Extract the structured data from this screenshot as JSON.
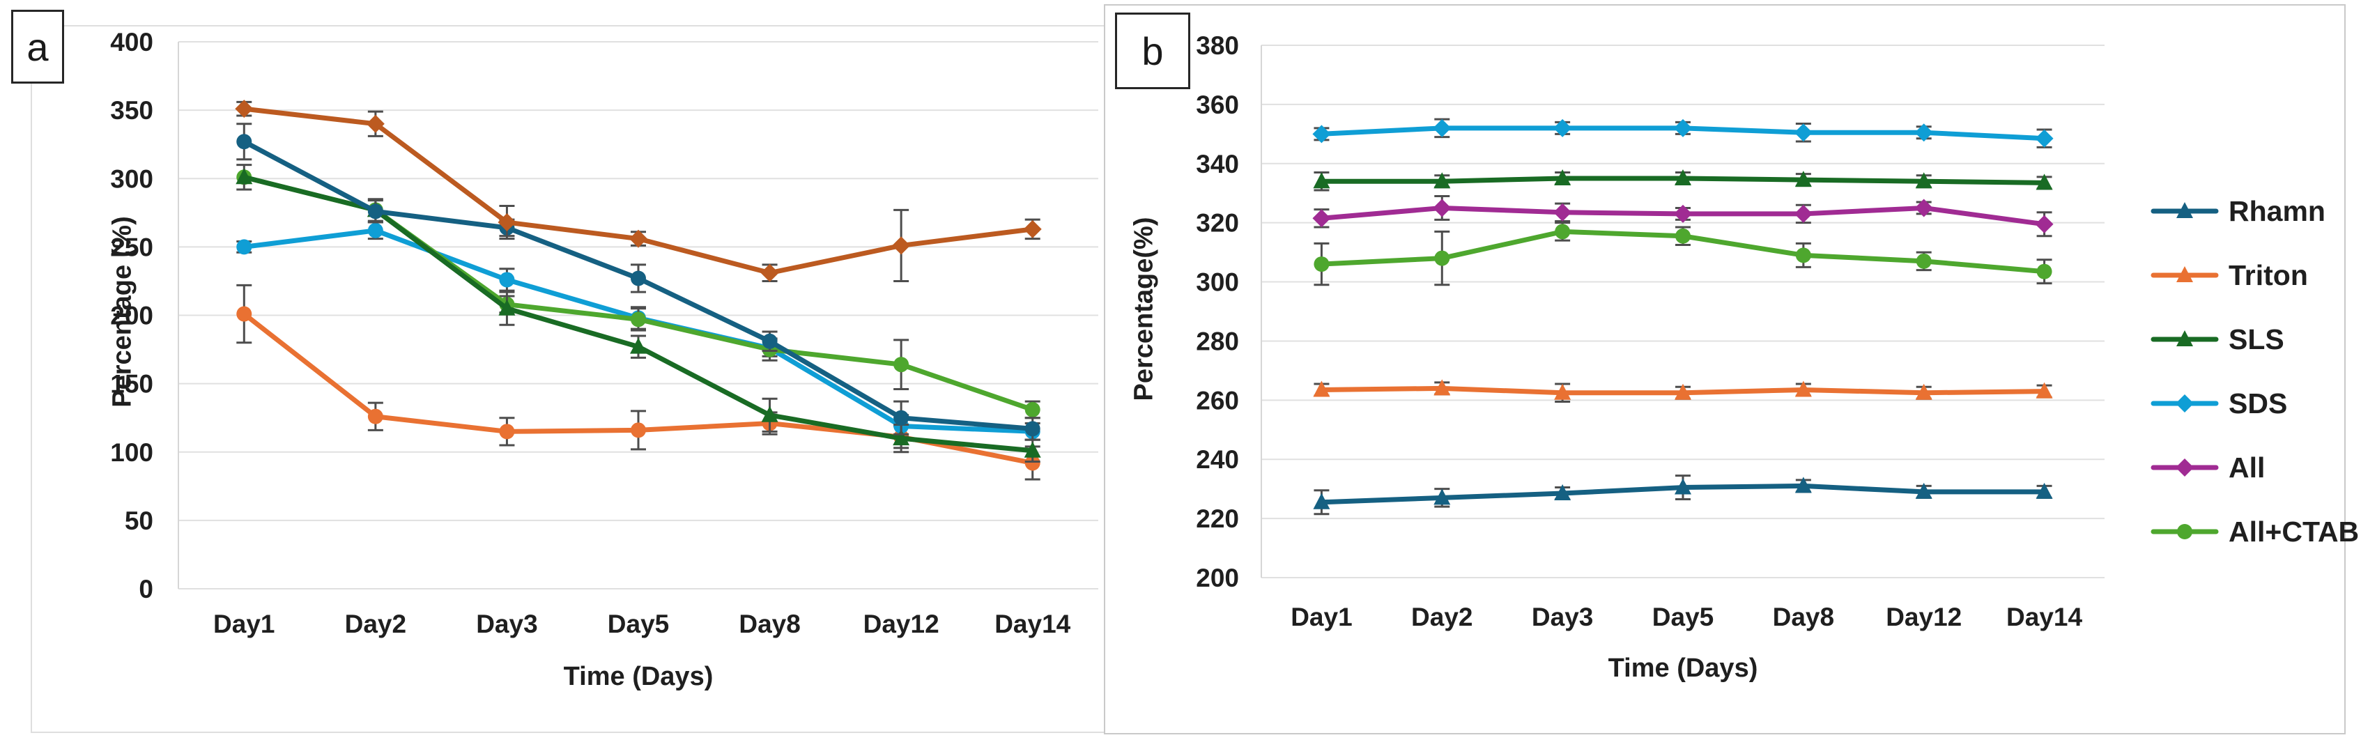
{
  "ui": {
    "background": "#FFFFFF",
    "grid_color": "#E0E0E0",
    "axis_line_color": "#D6D6D6",
    "error_bar_color": "#4D4D4D",
    "text_color": "#1F1F1F",
    "panel_a_border_color": "#DEDEDE",
    "panel_b_border_color": "#C9C9C9",
    "label_box_border_color": "#262626"
  },
  "chart_data": [
    {
      "id": "a",
      "type": "line",
      "panel_label": "a",
      "title": "",
      "xlabel": "Time (Days)",
      "ylabel": "Percentage (%)",
      "categories": [
        "Day1",
        "Day2",
        "Day3",
        "Day5",
        "Day8",
        "Day12",
        "Day14"
      ],
      "ylim": [
        0,
        400
      ],
      "yticks": [
        0,
        50,
        100,
        150,
        200,
        250,
        300,
        350,
        400
      ],
      "grid": true,
      "legend_position": "none",
      "error_bars": true,
      "series": [
        {
          "name": "Rhamn",
          "color": "#156082",
          "marker": "circle",
          "draw_index": 4,
          "values": [
            327,
            276,
            264,
            227,
            181,
            125,
            117
          ],
          "errors": [
            13,
            8,
            6,
            10,
            7,
            12,
            8
          ]
        },
        {
          "name": "Triton",
          "color": "#E97132",
          "marker": "circle",
          "draw_index": 0,
          "values": [
            201,
            126,
            115,
            116,
            121,
            111,
            92
          ],
          "errors": [
            21,
            10,
            10,
            14,
            8,
            8,
            12
          ]
        },
        {
          "name": "SLS",
          "color": "#196B24",
          "marker": "triangle",
          "draw_index": 3,
          "values": [
            301,
            277,
            205,
            177,
            127,
            110,
            101
          ],
          "errors": [
            9,
            8,
            12,
            8,
            12,
            10,
            8
          ]
        },
        {
          "name": "SDS",
          "color": "#0F9ED5",
          "marker": "circle",
          "draw_index": 1,
          "values": [
            250,
            262,
            226,
            198,
            176,
            119,
            115
          ],
          "errors": [
            4,
            6,
            8,
            8,
            6,
            8,
            6
          ]
        },
        {
          "name": "All",
          "color": "#BC5A20",
          "marker": "diamond",
          "draw_index": 5,
          "values": [
            351,
            340,
            268,
            256,
            231,
            251,
            263
          ],
          "errors": [
            5,
            9,
            12,
            5,
            6,
            26,
            7
          ]
        },
        {
          "name": "All+CTAB",
          "color": "#4EA72E",
          "marker": "circle",
          "draw_index": 2,
          "values": [
            301,
            277,
            208,
            197,
            175,
            164,
            131
          ],
          "errors": [
            0,
            0,
            6,
            8,
            8,
            18,
            6
          ]
        }
      ]
    },
    {
      "id": "b",
      "type": "line",
      "panel_label": "b",
      "title": "",
      "xlabel": "Time (Days)",
      "ylabel": "Percentage(%)",
      "categories": [
        "Day1",
        "Day2",
        "Day3",
        "Day5",
        "Day8",
        "Day12",
        "Day14"
      ],
      "ylim": [
        200,
        380
      ],
      "yticks": [
        200,
        220,
        240,
        260,
        280,
        300,
        320,
        340,
        360,
        380
      ],
      "grid": true,
      "legend_position": "right",
      "error_bars": true,
      "series": [
        {
          "name": "Rhamn",
          "color": "#156082",
          "marker": "triangle",
          "draw_index": 0,
          "values": [
            225.5,
            227,
            228.5,
            230.5,
            231,
            229,
            229
          ],
          "errors": [
            4,
            3,
            2,
            4,
            2,
            2,
            2
          ]
        },
        {
          "name": "Triton",
          "color": "#E97132",
          "marker": "triangle",
          "draw_index": 1,
          "values": [
            263.5,
            264,
            262.5,
            262.5,
            263.5,
            262.5,
            263
          ],
          "errors": [
            2,
            2,
            3,
            2,
            2,
            2,
            2
          ]
        },
        {
          "name": "SLS",
          "color": "#196B24",
          "marker": "triangle",
          "draw_index": 2,
          "values": [
            334,
            334,
            335,
            335,
            334.5,
            334,
            333.5
          ],
          "errors": [
            3,
            2,
            2,
            2,
            2,
            2,
            2
          ]
        },
        {
          "name": "SDS",
          "color": "#0F9ED5",
          "marker": "diamond",
          "draw_index": 3,
          "values": [
            350,
            352,
            352,
            352,
            350.5,
            350.5,
            348.5
          ],
          "errors": [
            2,
            3,
            2,
            2,
            3,
            2,
            3
          ]
        },
        {
          "name": "All",
          "color": "#A02B93",
          "marker": "diamond",
          "draw_index": 4,
          "values": [
            321.5,
            325,
            323.5,
            323,
            323,
            325,
            319.5
          ],
          "errors": [
            3,
            4,
            3,
            2,
            3,
            2,
            4
          ]
        },
        {
          "name": "All+CTAB",
          "color": "#4EA72E",
          "marker": "circle",
          "draw_index": 5,
          "values": [
            306,
            308,
            317,
            315.5,
            309,
            307,
            303.5
          ],
          "errors": [
            7,
            9,
            3,
            3,
            4,
            3,
            4
          ]
        }
      ]
    }
  ]
}
